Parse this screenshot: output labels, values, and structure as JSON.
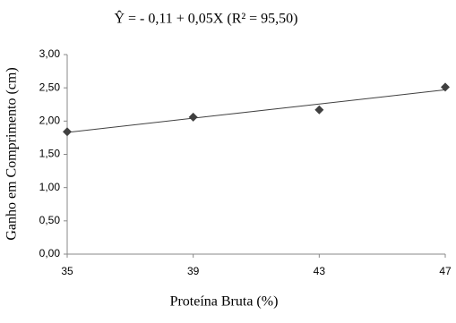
{
  "chart_data": {
    "type": "scatter",
    "title": "Ŷ = - 0,11 + 0,05X (R² = 95,50)",
    "x_label": "Proteína Bruta (%)",
    "y_label": "Ganho em Comprimento (cm)",
    "xlim": [
      35,
      47
    ],
    "xticks": [
      35,
      39,
      43,
      47
    ],
    "ylim": [
      0,
      3
    ],
    "yticks": [
      {
        "value": 0,
        "label": "0,00"
      },
      {
        "value": 0.5,
        "label": "0,50"
      },
      {
        "value": 1,
        "label": "1,00"
      },
      {
        "value": 1.5,
        "label": "1,50"
      },
      {
        "value": 2,
        "label": "2,00"
      },
      {
        "value": 2.5,
        "label": "2,50"
      },
      {
        "value": 3,
        "label": "3,00"
      }
    ],
    "grid": false,
    "series": [
      {
        "color": "#404040",
        "x": [
          35,
          39,
          43,
          47
        ],
        "values": [
          1.84,
          2.06,
          2.17,
          2.51
        ]
      }
    ],
    "trendline": {
      "color": "#404040",
      "x": [
        35,
        47
      ],
      "values": [
        1.83,
        2.47
      ]
    }
  }
}
